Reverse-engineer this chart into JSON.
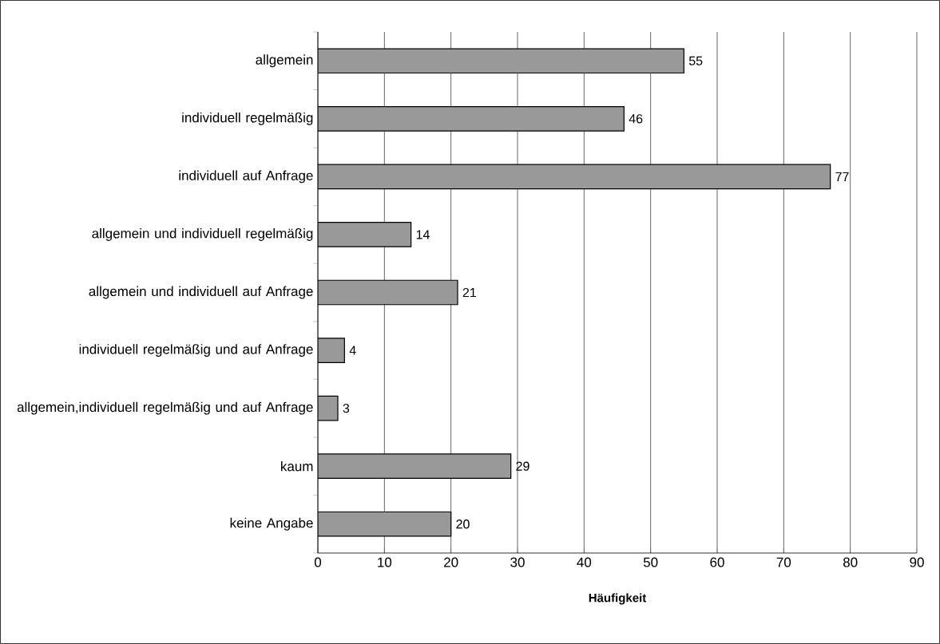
{
  "chart_data": {
    "type": "bar",
    "orientation": "horizontal",
    "xlabel": "Häufigkeit",
    "categories": [
      "allgemein",
      "individuell regelmäßig",
      "individuell auf Anfrage",
      "allgemein und individuell regelmäßig",
      "allgemein und individuell auf Anfrage",
      "individuell regelmäßig und auf Anfrage",
      "allgemein,individuell regelmäßig und auf Anfrage",
      "kaum",
      "keine Angabe"
    ],
    "values": [
      55,
      46,
      77,
      14,
      21,
      4,
      3,
      29,
      20
    ],
    "color": "#999999",
    "xlim": [
      0,
      90
    ],
    "xticks": [
      0,
      10,
      20,
      30,
      40,
      50,
      60,
      70,
      80,
      90
    ],
    "grid": "x",
    "data_labels": true
  }
}
